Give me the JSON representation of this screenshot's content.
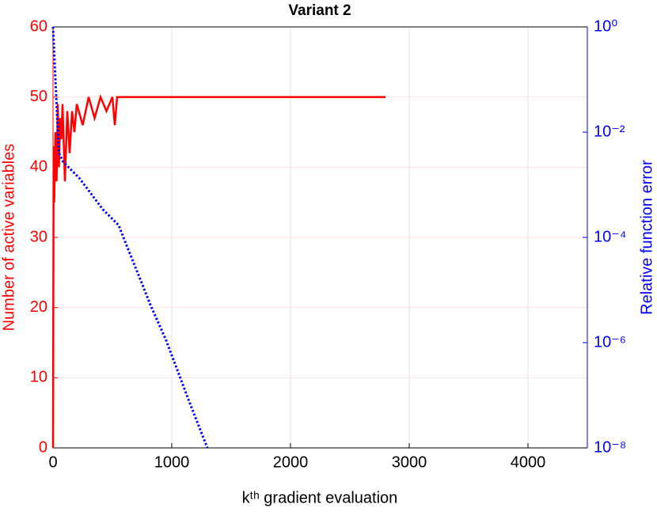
{
  "chart_data": {
    "type": "line",
    "title": "Variant 2",
    "xlabel": "kᵗʰ gradient evaluation",
    "ylabel": "Number of active variables",
    "y2label": "Relative function error",
    "xlim": [
      0,
      4500
    ],
    "xticks": [
      0,
      1000,
      2000,
      3000,
      4000
    ],
    "ylim": [
      0,
      60
    ],
    "yticks": [
      0,
      10,
      20,
      30,
      40,
      50,
      60
    ],
    "y2lim": [
      1e-08,
      1
    ],
    "y2log": true,
    "y2ticks": [
      {
        "value": 1e-08,
        "label": "10⁻⁸"
      },
      {
        "value": 1e-06,
        "label": "10⁻⁶"
      },
      {
        "value": 0.0001,
        "label": "10⁻⁴"
      },
      {
        "value": 0.01,
        "label": "10⁻²"
      },
      {
        "value": 1,
        "label": "10⁰"
      }
    ],
    "grid": true,
    "ycolor": "#ff0000",
    "y2color": "#0000ff",
    "series": [
      {
        "color": "#ff0000",
        "style": "solid",
        "x": [
          0,
          5,
          10,
          20,
          30,
          40,
          50,
          60,
          70,
          80,
          100,
          120,
          140,
          160,
          180,
          200,
          250,
          300,
          350,
          400,
          450,
          500,
          520,
          540,
          560,
          600,
          1000,
          2000,
          2800
        ],
        "values": [
          0,
          43,
          35,
          45,
          38,
          49,
          40,
          47,
          44,
          49,
          38,
          48,
          42,
          48,
          45,
          49,
          46,
          50,
          47,
          50,
          48,
          50,
          46,
          50,
          50,
          50,
          50,
          50,
          50
        ]
      },
      {
        "color": "#0000ff",
        "style": "dotted",
        "axis": "y2",
        "x": [
          0,
          20,
          50,
          87,
          220,
          420,
          553,
          620,
          753,
          820,
          953,
          1153,
          1300
        ],
        "values": [
          1,
          0.1,
          0.004,
          0.0027,
          0.00135,
          0.00034,
          0.00017,
          7e-05,
          1.26e-05,
          5.2e-06,
          1.1e-06,
          7e-08,
          1e-08
        ]
      }
    ]
  }
}
